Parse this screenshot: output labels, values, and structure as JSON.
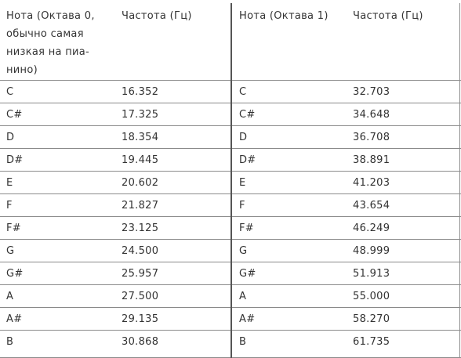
{
  "header": {
    "col1_lines": [
      "Нота (Октава 0,",
      "обычно самая",
      "низкая на пиа-",
      "нино)"
    ],
    "col2": "Частота (Гц)",
    "col3": "Нота (Октава 1)",
    "col4": "Частота (Гц)"
  },
  "rows": [
    {
      "note0": "C",
      "freq0": "16.352",
      "note1": "C",
      "freq1": "32.703"
    },
    {
      "note0": "C#",
      "freq0": "17.325",
      "note1": "C#",
      "freq1": "34.648"
    },
    {
      "note0": "D",
      "freq0": "18.354",
      "note1": "D",
      "freq1": "36.708"
    },
    {
      "note0": "D#",
      "freq0": "19.445",
      "note1": "D#",
      "freq1": "38.891"
    },
    {
      "note0": "E",
      "freq0": "20.602",
      "note1": "E",
      "freq1": "41.203"
    },
    {
      "note0": "F",
      "freq0": "21.827",
      "note1": "F",
      "freq1": "43.654"
    },
    {
      "note0": "F#",
      "freq0": "23.125",
      "note1": "F#",
      "freq1": "46.249"
    },
    {
      "note0": "G",
      "freq0": "24.500",
      "note1": "G",
      "freq1": "48.999"
    },
    {
      "note0": "G#",
      "freq0": "25.957",
      "note1": "G#",
      "freq1": "51.913"
    },
    {
      "note0": "A",
      "freq0": "27.500",
      "note1": "A",
      "freq1": "55.000"
    },
    {
      "note0": "A#",
      "freq0": "29.135",
      "note1": "A#",
      "freq1": "58.270"
    },
    {
      "note0": "B",
      "freq0": "30.868",
      "note1": "B",
      "freq1": "61.735"
    }
  ]
}
